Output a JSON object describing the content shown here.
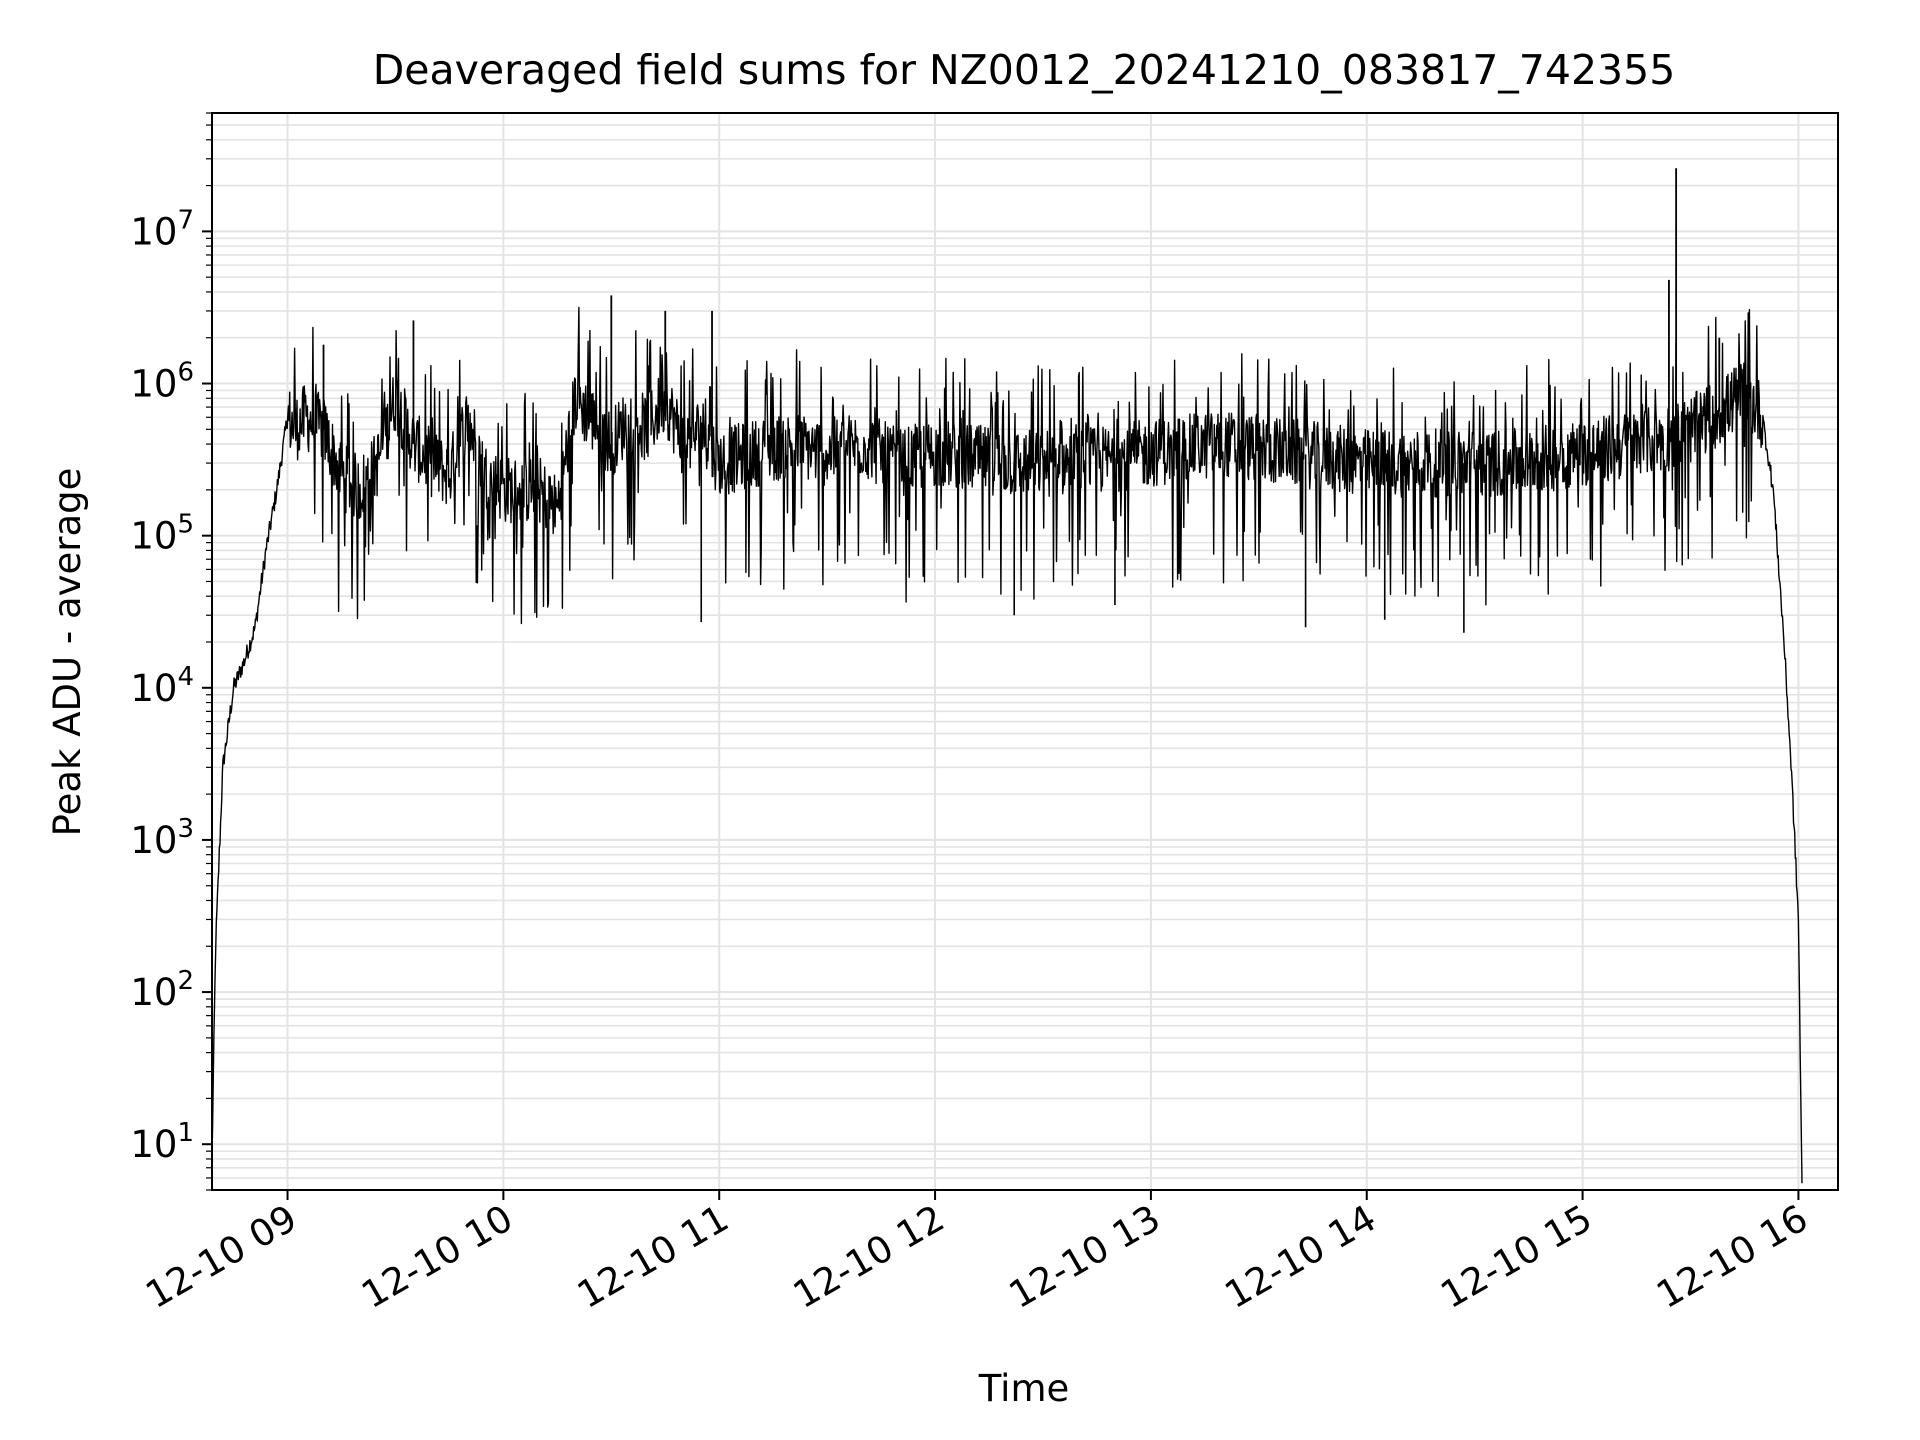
{
  "chart_data": {
    "type": "line",
    "title": "Deaveraged field sums for NZ0012_20241210_083817_742355",
    "xlabel": "Time",
    "ylabel": "Peak ADU - average",
    "yscale": "log",
    "grid": true,
    "line_color": "#000000",
    "grid_color": "#e3e3e3",
    "xlim": [
      "2024-12-10 08:39",
      "2024-12-10 16:11"
    ],
    "ylim": [
      5,
      60000000
    ],
    "x_tick_labels": [
      "12-10 09",
      "12-10 10",
      "12-10 11",
      "12-10 12",
      "12-10 13",
      "12-10 14",
      "12-10 15",
      "12-10 16"
    ],
    "x_tick_times": [
      "2024-12-10 09:00",
      "2024-12-10 10:00",
      "2024-12-10 11:00",
      "2024-12-10 12:00",
      "2024-12-10 13:00",
      "2024-12-10 14:00",
      "2024-12-10 15:00",
      "2024-12-10 16:00"
    ],
    "y_tick_labels": [
      {
        "base": "10",
        "exp": "1",
        "value": 10
      },
      {
        "base": "10",
        "exp": "2",
        "value": 100
      },
      {
        "base": "10",
        "exp": "3",
        "value": 1000
      },
      {
        "base": "10",
        "exp": "4",
        "value": 10000
      },
      {
        "base": "10",
        "exp": "5",
        "value": 100000
      },
      {
        "base": "10",
        "exp": "6",
        "value": 1000000
      },
      {
        "base": "10",
        "exp": "7",
        "value": 10000000
      }
    ],
    "series": [
      {
        "x": [
          "2024-12-10 08:39",
          "2024-12-10 08:40",
          "2024-12-10 08:42",
          "2024-12-10 08:45",
          "2024-12-10 08:48",
          "2024-12-10 08:51",
          "2024-12-10 08:54",
          "2024-12-10 08:57",
          "2024-12-10 09:00",
          "2024-12-10 09:02",
          "2024-12-10 09:05",
          "2024-12-10 09:10",
          "2024-12-10 09:15",
          "2024-12-10 09:20",
          "2024-12-10 09:25",
          "2024-12-10 09:30",
          "2024-12-10 09:35",
          "2024-12-10 09:40",
          "2024-12-10 09:45",
          "2024-12-10 09:50",
          "2024-12-10 09:55",
          "2024-12-10 10:00",
          "2024-12-10 10:10",
          "2024-12-10 10:15",
          "2024-12-10 10:20",
          "2024-12-10 10:30",
          "2024-12-10 10:35",
          "2024-12-10 10:40",
          "2024-12-10 10:45",
          "2024-12-10 10:50",
          "2024-12-10 10:55",
          "2024-12-10 11:00",
          "2024-12-10 11:10",
          "2024-12-10 11:20",
          "2024-12-10 11:30",
          "2024-12-10 11:40",
          "2024-12-10 11:50",
          "2024-12-10 12:00",
          "2024-12-10 12:20",
          "2024-12-10 12:40",
          "2024-12-10 13:00",
          "2024-12-10 13:20",
          "2024-12-10 13:40",
          "2024-12-10 14:00",
          "2024-12-10 14:20",
          "2024-12-10 14:40",
          "2024-12-10 15:00",
          "2024-12-10 15:15",
          "2024-12-10 15:25",
          "2024-12-10 15:30",
          "2024-12-10 15:40",
          "2024-12-10 15:45",
          "2024-12-10 15:50",
          "2024-12-10 15:53",
          "2024-12-10 15:56",
          "2024-12-10 15:58",
          "2024-12-10 16:00",
          "2024-12-10 16:01"
        ],
        "y": [
          8,
          200,
          3000,
          10000,
          15000,
          25000,
          80000,
          200000,
          600000,
          500000,
          600000,
          500000,
          250000,
          200000,
          300000,
          800000,
          400000,
          300000,
          250000,
          600000,
          250000,
          200000,
          200000,
          150000,
          800000,
          400000,
          600000,
          500000,
          800000,
          400000,
          500000,
          300000,
          350000,
          400000,
          350000,
          400000,
          300000,
          350000,
          300000,
          300000,
          350000,
          400000,
          350000,
          300000,
          300000,
          300000,
          350000,
          400000,
          450000,
          500000,
          700000,
          900000,
          600000,
          200000,
          20000,
          3000,
          300,
          5
        ]
      }
    ],
    "spikes": [
      {
        "x": "2024-12-10 09:10",
        "y": 1800000
      },
      {
        "x": "2024-12-10 09:35",
        "y": 2600000
      },
      {
        "x": "2024-12-10 10:30",
        "y": 3800000
      },
      {
        "x": "2024-12-10 10:45",
        "y": 3000000
      },
      {
        "x": "2024-12-10 10:58",
        "y": 3000000
      },
      {
        "x": "2024-12-10 15:24",
        "y": 4800000
      },
      {
        "x": "2024-12-10 15:26",
        "y": 26000000
      },
      {
        "x": "2024-12-10 15:38",
        "y": 2000000
      }
    ],
    "dips": [
      {
        "x": "2024-12-10 10:55",
        "y": 27000
      },
      {
        "x": "2024-12-10 12:22",
        "y": 30000
      },
      {
        "x": "2024-12-10 12:50",
        "y": 35000
      },
      {
        "x": "2024-12-10 13:43",
        "y": 25000
      },
      {
        "x": "2024-12-10 14:05",
        "y": 28000
      },
      {
        "x": "2024-12-10 14:27",
        "y": 23000
      }
    ]
  }
}
